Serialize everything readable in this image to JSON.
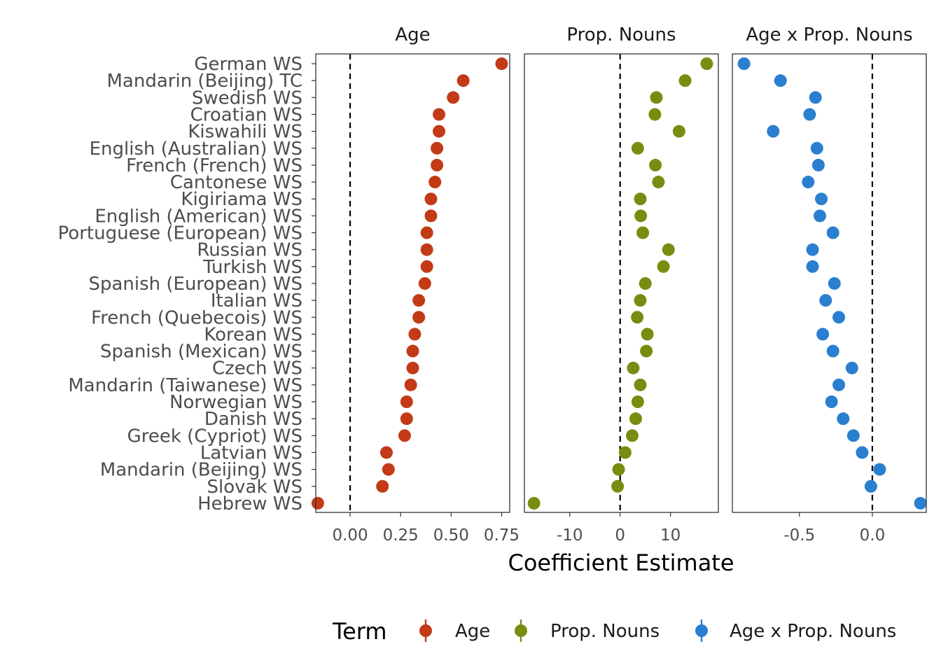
{
  "chart_data": {
    "type": "scatter",
    "xlabel": "Coefficient Estimate",
    "legend_title": "Term",
    "legend_position": "bottom",
    "grid": false,
    "categories": [
      "German WS",
      "Mandarin (Beijing) TC",
      "Swedish WS",
      "Croatian WS",
      "Kiswahili WS",
      "English (Australian) WS",
      "French (French) WS",
      "Cantonese WS",
      "Kigiriama WS",
      "English (American) WS",
      "Portuguese (European) WS",
      "Russian WS",
      "Turkish WS",
      "Spanish (European) WS",
      "Italian WS",
      "French (Quebecois) WS",
      "Korean WS",
      "Spanish (Mexican) WS",
      "Czech WS",
      "Mandarin (Taiwanese) WS",
      "Norwegian WS",
      "Danish WS",
      "Greek (Cypriot) WS",
      "Latvian WS",
      "Mandarin (Beijing) WS",
      "Slovak WS",
      "Hebrew WS"
    ],
    "panels": [
      {
        "name": "Age",
        "color": "#c23a16",
        "xlim": [
          -0.17,
          0.79
        ],
        "ticks": [
          0.0,
          0.25,
          0.5,
          0.75
        ],
        "tick_labels": [
          "0.00",
          "0.25",
          "0.50",
          "0.75"
        ],
        "values": [
          0.75,
          0.56,
          0.51,
          0.44,
          0.44,
          0.43,
          0.43,
          0.42,
          0.4,
          0.4,
          0.38,
          0.38,
          0.38,
          0.37,
          0.34,
          0.34,
          0.32,
          0.31,
          0.31,
          0.3,
          0.28,
          0.28,
          0.27,
          0.18,
          0.19,
          0.16,
          -0.16
        ]
      },
      {
        "name": "Prop. Nouns",
        "color": "#7a8c10",
        "xlim": [
          -19.0,
          19.5
        ],
        "ticks": [
          -10,
          0,
          10
        ],
        "tick_labels": [
          "-10",
          "0",
          "10"
        ],
        "values": [
          17.2,
          12.9,
          7.2,
          6.9,
          11.7,
          3.5,
          7.0,
          7.6,
          4.0,
          4.1,
          4.5,
          9.6,
          8.6,
          5.0,
          4.0,
          3.4,
          5.4,
          5.2,
          2.6,
          4.0,
          3.5,
          3.1,
          2.4,
          1.0,
          -0.3,
          -0.5,
          -17.1
        ]
      },
      {
        "name": "Age x Prop. Nouns",
        "color": "#2a7fd0",
        "xlim": [
          -0.96,
          0.37
        ],
        "ticks": [
          -0.5,
          0.0
        ],
        "tick_labels": [
          "-0.5",
          "0.0"
        ],
        "values": [
          -0.88,
          -0.63,
          -0.39,
          -0.43,
          -0.68,
          -0.38,
          -0.37,
          -0.44,
          -0.35,
          -0.36,
          -0.27,
          -0.41,
          -0.41,
          -0.26,
          -0.32,
          -0.23,
          -0.34,
          -0.27,
          -0.14,
          -0.23,
          -0.28,
          -0.2,
          -0.13,
          -0.07,
          0.05,
          -0.01,
          0.33
        ]
      }
    ]
  }
}
